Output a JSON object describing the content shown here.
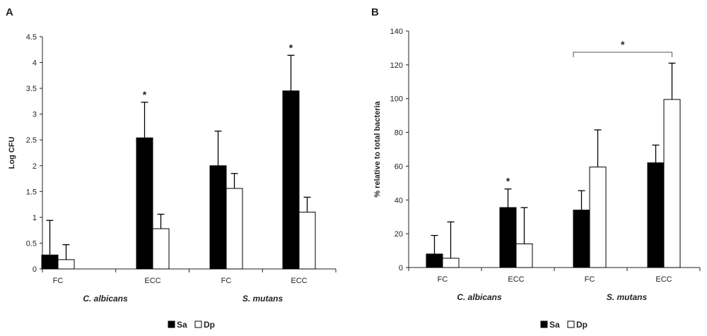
{
  "chart_data": [
    {
      "type": "bar",
      "panel_label": "A",
      "ylabel": "Log CFU",
      "ylim": [
        0,
        4.5
      ],
      "yticks": [
        "0",
        "0.5",
        "1",
        "1.5",
        "2",
        "2.5",
        "3",
        "3.5",
        "4",
        "4.5"
      ],
      "categories": [
        "FC",
        "ECC",
        "FC",
        "ECC"
      ],
      "groups": [
        {
          "label": "C. albicans",
          "categories": [
            0,
            1
          ]
        },
        {
          "label": "S. mutans",
          "categories": [
            2,
            3
          ]
        }
      ],
      "series": [
        {
          "name": "Sa",
          "color": "#000000",
          "values": [
            0.27,
            2.54,
            2.0,
            3.45
          ],
          "errors": [
            0.67,
            0.69,
            0.67,
            0.69
          ]
        },
        {
          "name": "Dp",
          "color": "#ffffff",
          "values": [
            0.18,
            0.78,
            1.56,
            1.1
          ],
          "errors": [
            0.29,
            0.28,
            0.29,
            0.29
          ]
        }
      ],
      "annotations": [
        {
          "text": "*",
          "category": 1,
          "series": 0
        },
        {
          "text": "*",
          "category": 3,
          "series": 0
        }
      ],
      "legend": "bottom-center"
    },
    {
      "type": "bar",
      "panel_label": "B",
      "ylabel": "% relative to total bacteria",
      "ylim": [
        0,
        140
      ],
      "yticks": [
        "0",
        "20",
        "40",
        "60",
        "80",
        "100",
        "120",
        "140"
      ],
      "categories": [
        "FC",
        "ECC",
        "FC",
        "ECC"
      ],
      "groups": [
        {
          "label": "C. albicans",
          "categories": [
            0,
            1
          ]
        },
        {
          "label": "S. mutans",
          "categories": [
            2,
            3
          ]
        }
      ],
      "series": [
        {
          "name": "Sa",
          "color": "#000000",
          "values": [
            8,
            35.5,
            34,
            62
          ],
          "errors": [
            11,
            11,
            11.5,
            10.5
          ]
        },
        {
          "name": "Dp",
          "color": "#ffffff",
          "values": [
            5.5,
            14,
            59.5,
            99.5
          ],
          "errors": [
            21.5,
            21.5,
            22,
            21.5
          ]
        }
      ],
      "annotations": [
        {
          "text": "*",
          "category": 1,
          "series": 0
        }
      ],
      "brackets": [
        {
          "text": "*",
          "from": {
            "category": 2,
            "series": 1
          },
          "to": {
            "category": 3,
            "series": 1
          }
        }
      ],
      "legend": "bottom-center"
    }
  ]
}
